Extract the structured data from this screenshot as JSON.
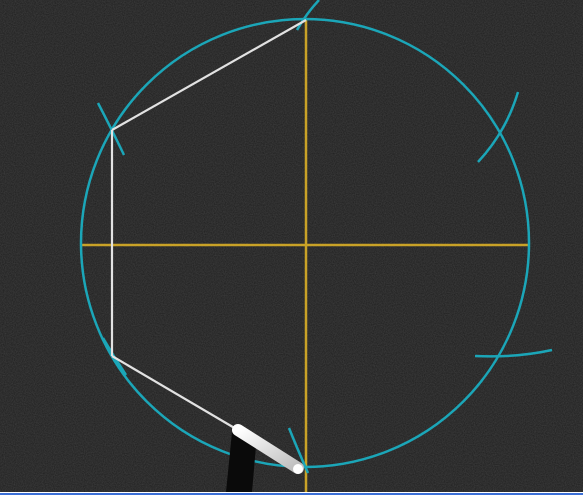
{
  "scene": {
    "type": "chalkboard-construction",
    "description_visible_text": "",
    "colors": {
      "board": "#1d1d1d",
      "circle": "#1ba6b8",
      "axes": "#c9a227",
      "chalk_lines": "#e2e2e2",
      "chalk_stick": "#f2f2f2",
      "border": "#3b6fd6"
    },
    "elements": [
      "compass-circle",
      "horizontal-diameter",
      "vertical-diameter",
      "arc-marks",
      "hexagon-edges",
      "chalk-stick"
    ]
  }
}
